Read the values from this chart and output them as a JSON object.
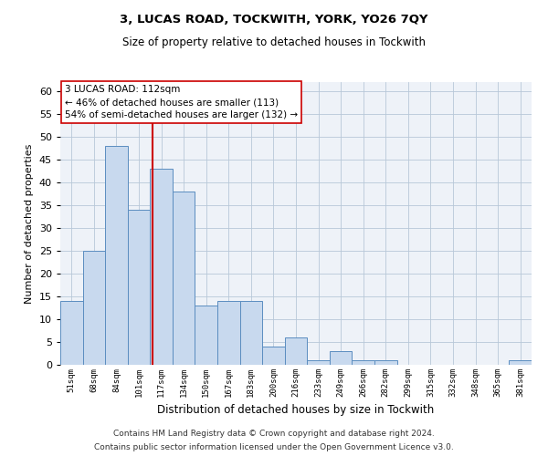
{
  "title1": "3, LUCAS ROAD, TOCKWITH, YORK, YO26 7QY",
  "title2": "Size of property relative to detached houses in Tockwith",
  "xlabel": "Distribution of detached houses by size in Tockwith",
  "ylabel": "Number of detached properties",
  "categories": [
    "51sqm",
    "68sqm",
    "84sqm",
    "101sqm",
    "117sqm",
    "134sqm",
    "150sqm",
    "167sqm",
    "183sqm",
    "200sqm",
    "216sqm",
    "233sqm",
    "249sqm",
    "266sqm",
    "282sqm",
    "299sqm",
    "315sqm",
    "332sqm",
    "348sqm",
    "365sqm",
    "381sqm"
  ],
  "values": [
    14,
    25,
    48,
    34,
    43,
    38,
    13,
    14,
    14,
    4,
    6,
    1,
    3,
    1,
    1,
    0,
    0,
    0,
    0,
    0,
    1
  ],
  "bar_color": "#c8d9ee",
  "bar_edge_color": "#5b8dc0",
  "vline_x": 3.62,
  "vline_color": "#cc0000",
  "annotation_text": "3 LUCAS ROAD: 112sqm\n← 46% of detached houses are smaller (113)\n54% of semi-detached houses are larger (132) →",
  "annotation_box_color": "#ffffff",
  "annotation_box_edge": "#cc0000",
  "ylim": [
    0,
    62
  ],
  "yticks": [
    0,
    5,
    10,
    15,
    20,
    25,
    30,
    35,
    40,
    45,
    50,
    55,
    60
  ],
  "footer1": "Contains HM Land Registry data © Crown copyright and database right 2024.",
  "footer2": "Contains public sector information licensed under the Open Government Licence v3.0.",
  "background_color": "#eef2f8"
}
